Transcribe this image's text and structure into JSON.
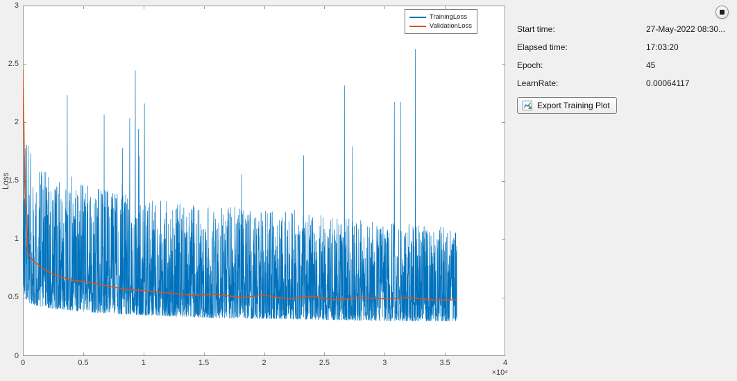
{
  "window": {
    "background": "#f0f0f0"
  },
  "stop_button": {
    "tooltip": "Stop training"
  },
  "info_panel": {
    "rows": [
      {
        "label": "Start time:",
        "value": "27-May-2022 08:30..."
      },
      {
        "label": "Elapsed time:",
        "value": "17:03:20"
      },
      {
        "label": "Epoch:",
        "value": "45"
      },
      {
        "label": "LearnRate:",
        "value": "0.00064117"
      }
    ],
    "export_button": {
      "label": "Export Training Plot"
    }
  },
  "chart_data": {
    "type": "line",
    "title": "",
    "xlabel": "",
    "ylabel": "Loss",
    "xlim": [
      0,
      40000
    ],
    "ylim": [
      0,
      3
    ],
    "grid": false,
    "x_axis_multiplier": "×10⁴",
    "x_ticks": {
      "values": [
        0,
        5000,
        10000,
        15000,
        20000,
        25000,
        30000,
        35000,
        40000
      ],
      "labels": [
        "0",
        "0.5",
        "1",
        "1.5",
        "2",
        "2.5",
        "3",
        "3.5",
        "4"
      ]
    },
    "y_ticks": {
      "values": [
        0,
        0.5,
        1,
        1.5,
        2,
        2.5,
        3
      ],
      "labels": [
        "0",
        "0.5",
        "1",
        "1.5",
        "2",
        "2.5",
        "3"
      ]
    },
    "legend": {
      "position": "northeast",
      "entries": [
        "TrainingLoss",
        "ValidationLoss"
      ]
    },
    "axis_color": "#9a9a9a",
    "series": [
      {
        "name": "TrainingLoss",
        "color": "#0072BD",
        "style": "noisy",
        "x_end": 36000,
        "spike_max": 2.7,
        "envelope": {
          "x": [
            0,
            200,
            600,
            1500,
            3000,
            6000,
            10000,
            15000,
            20000,
            25000,
            30000,
            36000
          ],
          "lower": [
            0.55,
            0.5,
            0.45,
            0.42,
            0.4,
            0.37,
            0.35,
            0.33,
            0.32,
            0.31,
            0.3,
            0.3
          ],
          "upper": [
            2.55,
            2.0,
            1.75,
            1.6,
            1.5,
            1.45,
            1.35,
            1.3,
            1.25,
            1.2,
            1.15,
            1.1
          ]
        }
      },
      {
        "name": "ValidationLoss",
        "color": "#D95319",
        "style": "smooth",
        "x": [
          0,
          150,
          400,
          800,
          1500,
          2500,
          4000,
          5500,
          7000,
          8500,
          10000,
          12000,
          14000,
          16000,
          18000,
          20000,
          22000,
          24000,
          26000,
          28000,
          30000,
          32000,
          34000,
          36000
        ],
        "y": [
          2.45,
          1.5,
          0.88,
          0.82,
          0.76,
          0.7,
          0.65,
          0.63,
          0.6,
          0.57,
          0.56,
          0.54,
          0.52,
          0.53,
          0.5,
          0.52,
          0.49,
          0.51,
          0.48,
          0.5,
          0.49,
          0.5,
          0.48,
          0.48
        ]
      }
    ]
  }
}
